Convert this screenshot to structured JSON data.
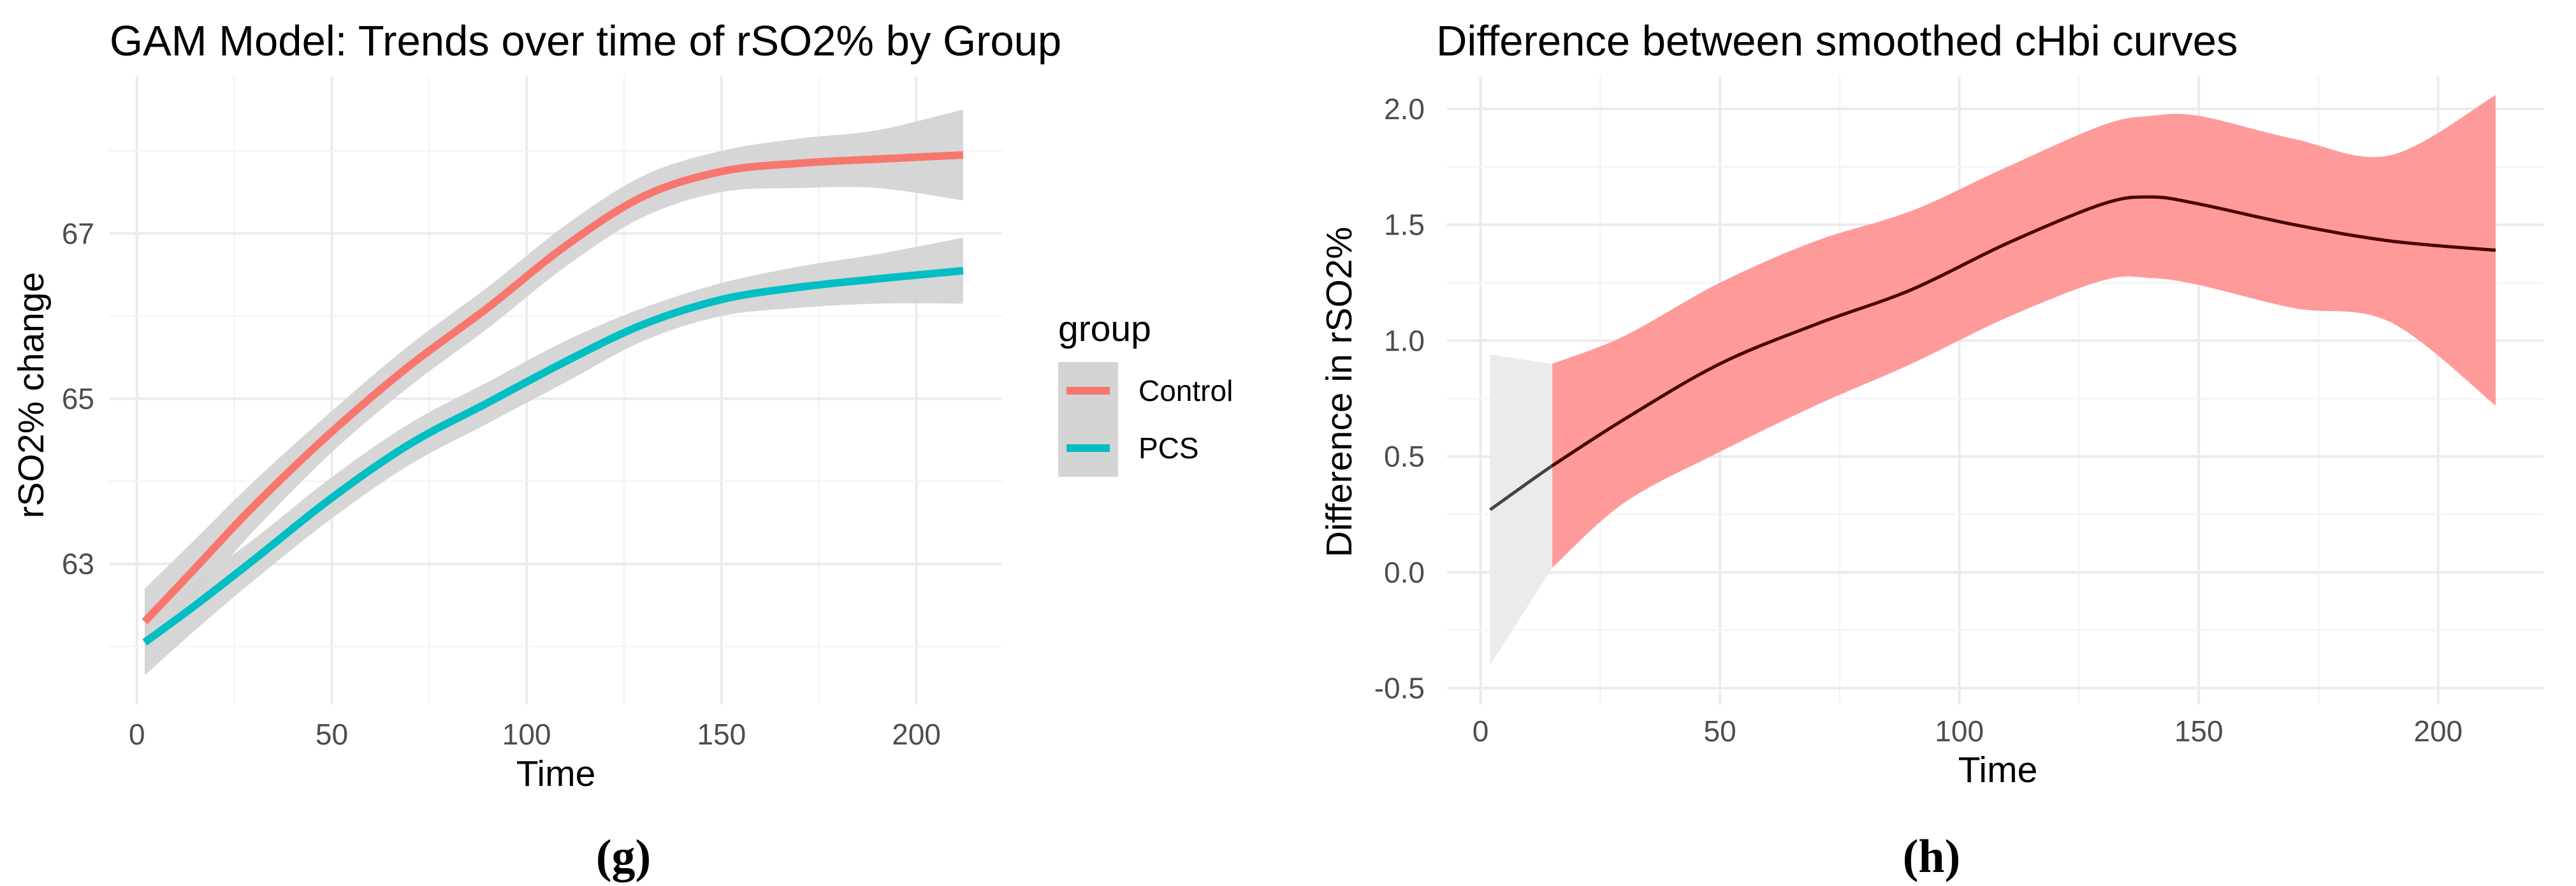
{
  "chart_data": [
    {
      "type": "line",
      "title": "GAM Model: Trends over time of rSO2% by Group",
      "xlabel": "Time",
      "ylabel": "rSO2% change",
      "xlim": [
        -7,
        222
      ],
      "ylim": [
        61.3,
        68.9
      ],
      "x_ticks": [
        0,
        50,
        100,
        150,
        200
      ],
      "y_ticks": [
        63,
        65,
        67
      ],
      "grid": true,
      "legend": {
        "title": "group",
        "position": "right"
      },
      "panel_label": "(g)",
      "series": [
        {
          "name": "Control",
          "color": "#f8766d",
          "x": [
            2,
            15,
            30,
            50,
            70,
            90,
            110,
            130,
            150,
            170,
            190,
            212
          ],
          "y": [
            62.3,
            62.95,
            63.7,
            64.6,
            65.4,
            66.1,
            66.85,
            67.45,
            67.75,
            67.85,
            67.9,
            67.95
          ],
          "lower": [
            61.9,
            62.6,
            63.4,
            64.35,
            65.15,
            65.85,
            66.6,
            67.2,
            67.5,
            67.55,
            67.55,
            67.4
          ],
          "upper": [
            62.7,
            63.3,
            64.0,
            64.85,
            65.65,
            66.35,
            67.1,
            67.7,
            68.0,
            68.15,
            68.25,
            68.5
          ]
        },
        {
          "name": "PCS",
          "color": "#00bfc4",
          "x": [
            2,
            15,
            30,
            50,
            70,
            90,
            110,
            130,
            150,
            170,
            190,
            212
          ],
          "y": [
            62.05,
            62.5,
            63.05,
            63.8,
            64.45,
            64.95,
            65.45,
            65.9,
            66.2,
            66.35,
            66.45,
            66.55
          ],
          "lower": [
            61.65,
            62.2,
            62.8,
            63.55,
            64.2,
            64.7,
            65.2,
            65.7,
            66.0,
            66.1,
            66.15,
            66.15
          ],
          "upper": [
            62.45,
            62.8,
            63.3,
            64.05,
            64.7,
            65.2,
            65.7,
            66.1,
            66.4,
            66.6,
            66.75,
            66.95
          ]
        }
      ]
    },
    {
      "type": "line",
      "title": "Difference between smoothed cHbi curves",
      "xlabel": "Time",
      "ylabel": "Difference in rSO2%",
      "xlim": [
        -7,
        222
      ],
      "ylim": [
        -0.57,
        2.14
      ],
      "x_ticks": [
        0,
        50,
        100,
        150,
        200
      ],
      "y_ticks": [
        -0.5,
        0.0,
        0.5,
        1.0,
        1.5,
        2.0
      ],
      "y_tick_labels": [
        "-0.5",
        "0.0",
        "0.5",
        "1.0",
        "1.5",
        "2.0"
      ],
      "grid": true,
      "panel_label": "(h)",
      "difference": {
        "name": "difference",
        "color": "#000000",
        "x": [
          2,
          15,
          30,
          50,
          70,
          90,
          110,
          130,
          140,
          150,
          170,
          190,
          212
        ],
        "y": [
          0.27,
          0.46,
          0.66,
          0.9,
          1.07,
          1.22,
          1.42,
          1.59,
          1.62,
          1.59,
          1.5,
          1.43,
          1.39
        ],
        "lower": [
          -0.4,
          0.02,
          0.3,
          0.52,
          0.72,
          0.9,
          1.1,
          1.26,
          1.27,
          1.24,
          1.14,
          1.08,
          0.72
        ],
        "upper": [
          0.94,
          0.9,
          1.02,
          1.25,
          1.43,
          1.56,
          1.75,
          1.93,
          1.97,
          1.97,
          1.87,
          1.8,
          2.06
        ],
        "significant_from": 15,
        "significant_color": "#ff9a9a",
        "nonsignificant_color": "#ebebeb"
      }
    }
  ]
}
